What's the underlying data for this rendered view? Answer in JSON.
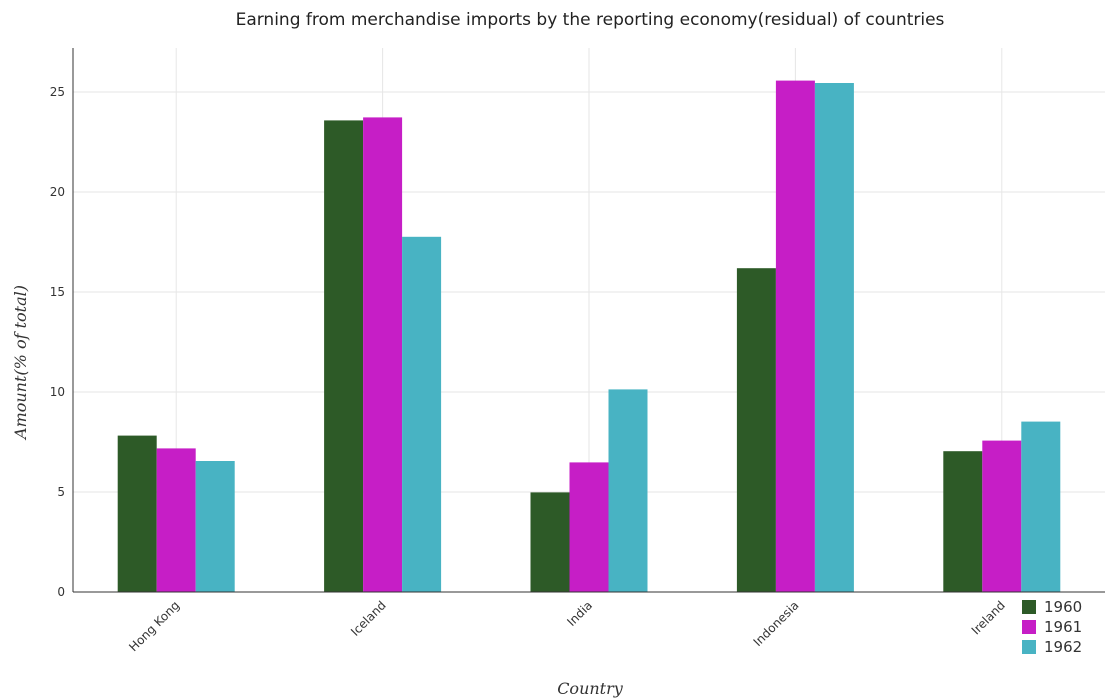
{
  "chart_data": {
    "type": "bar",
    "title": "Earning from merchandise imports by the reporting economy(residual) of countries",
    "xlabel": "Country",
    "ylabel": "Amount(% of total)",
    "categories": [
      "Hong Kong",
      "Iceland",
      "India",
      "Indonesia",
      "Ireland"
    ],
    "series": [
      {
        "name": "1960",
        "color": "#2d5a27",
        "values": [
          7.82,
          23.58,
          4.98,
          16.19,
          7.04
        ]
      },
      {
        "name": "1961",
        "color": "#c61ec6",
        "values": [
          7.18,
          23.73,
          6.48,
          25.57,
          7.57
        ]
      },
      {
        "name": "1962",
        "color": "#48b3c3",
        "values": [
          6.55,
          17.76,
          10.13,
          25.45,
          8.52
        ]
      }
    ],
    "ylim": [
      0,
      27.2
    ],
    "yticks": [
      0,
      5,
      10,
      15,
      20,
      25
    ],
    "grid": true,
    "legend_position": "bottom-right"
  }
}
